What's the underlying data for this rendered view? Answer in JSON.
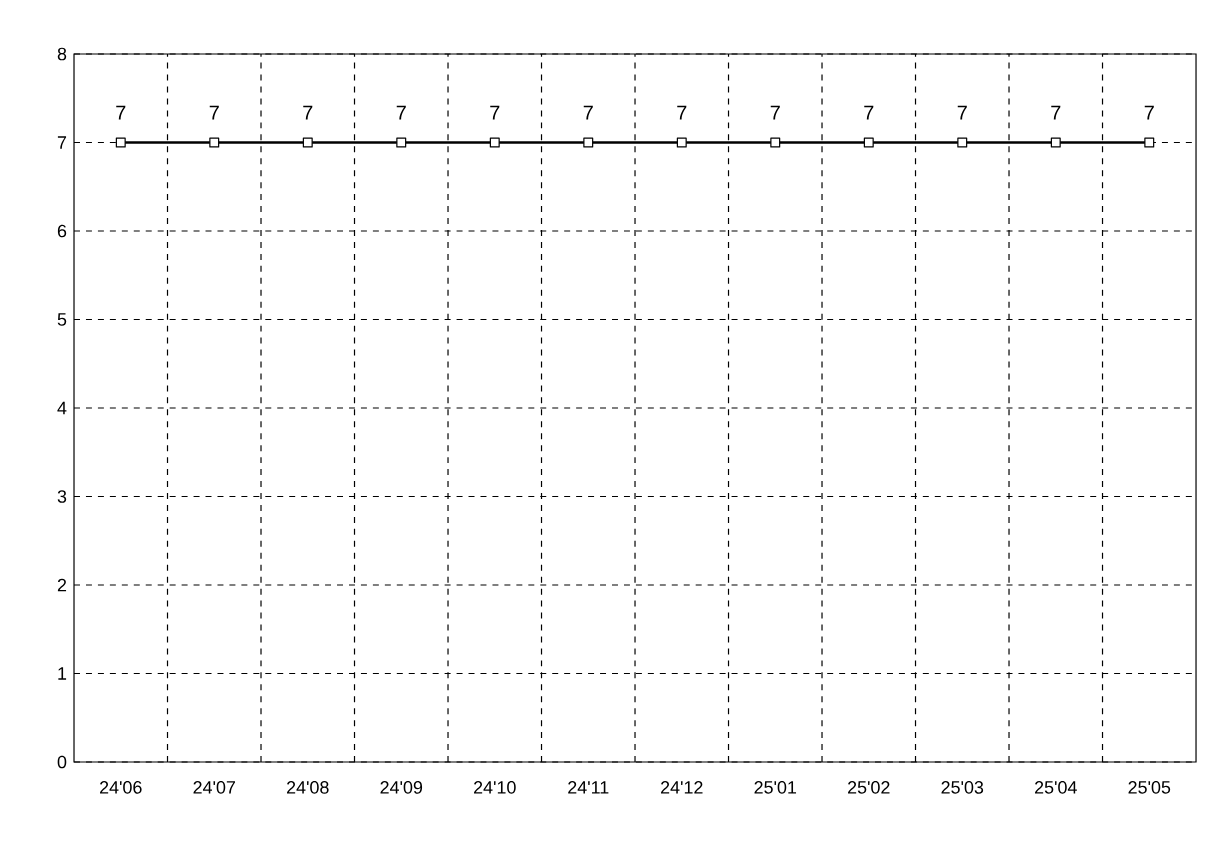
{
  "chart_data": {
    "type": "line",
    "categories": [
      "24'06",
      "24'07",
      "24'08",
      "24'09",
      "24'10",
      "24'11",
      "24'12",
      "25'01",
      "25'02",
      "25'03",
      "25'04",
      "25'05"
    ],
    "series": [
      {
        "color": "#000000",
        "values": [
          7,
          7,
          7,
          7,
          7,
          7,
          7,
          7,
          7,
          7,
          7,
          7
        ]
      }
    ],
    "ylim": [
      0,
      8
    ],
    "yticks": [
      0,
      1,
      2,
      3,
      4,
      5,
      6,
      7,
      8
    ],
    "grid": true,
    "marker": "square",
    "line_style": "solid",
    "data_labels": true
  }
}
